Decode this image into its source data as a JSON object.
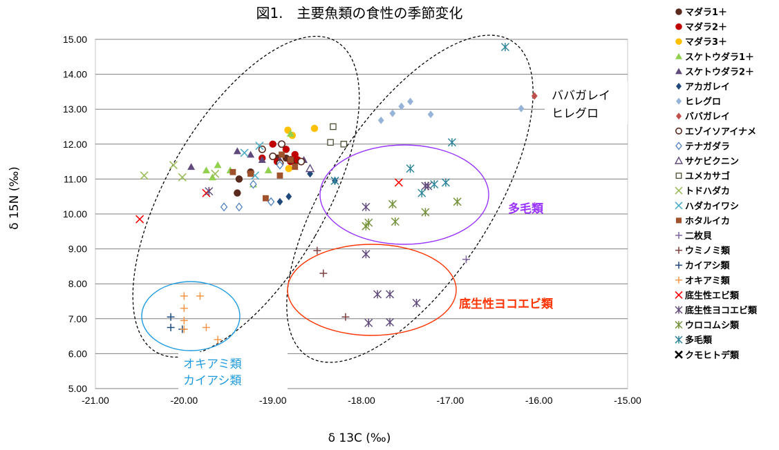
{
  "chart_data": {
    "type": "scatter",
    "title": "図1.　主要魚類の食性の季節変化",
    "xlabel": "δ 13C (‰)",
    "ylabel": "δ 15N (‰)",
    "xlim": [
      -21,
      -15
    ],
    "ylim": [
      5,
      15
    ],
    "x_ticks": [
      "-21.00",
      "-20.00",
      "-19.00",
      "-18.00",
      "-17.00",
      "-16.00",
      "-15.00"
    ],
    "y_ticks": [
      "5.00",
      "6.00",
      "7.00",
      "8.00",
      "9.00",
      "10.00",
      "11.00",
      "12.00",
      "13.00",
      "14.00",
      "15.00"
    ],
    "grid": "horizontal",
    "legend_position": "right",
    "annotations": [
      {
        "text_lines": [
          "ババガレイ",
          "ヒレグロ"
        ],
        "color": "#000000"
      },
      {
        "text_lines": [
          "多毛類"
        ],
        "color": "#9933ff"
      },
      {
        "text_lines": [
          "底生性ヨコエビ類"
        ],
        "color": "#ff3300"
      },
      {
        "text_lines": [
          "オキアミ類",
          "カイアシ類"
        ],
        "color": "#1e9be0"
      }
    ],
    "series": [
      {
        "name": "マダラ1＋",
        "marker": "circle",
        "color": "#5a2a1e",
        "points": [
          [
            -19.4,
            10.6
          ],
          [
            -19.38,
            11.0
          ],
          [
            -19.25,
            11.2
          ],
          [
            -18.95,
            11.6
          ],
          [
            -18.75,
            11.5
          ],
          [
            -18.85,
            11.6
          ]
        ]
      },
      {
        "name": "マダラ2＋",
        "marker": "circle",
        "color": "#c00000",
        "points": [
          [
            -19.12,
            11.6
          ],
          [
            -19.0,
            12.0
          ],
          [
            -18.95,
            11.5
          ],
          [
            -18.8,
            11.5
          ],
          [
            -18.75,
            11.7
          ],
          [
            -18.85,
            11.85
          ],
          [
            -18.72,
            11.55
          ]
        ]
      },
      {
        "name": "マダラ3＋",
        "marker": "circle",
        "color": "#ffc000",
        "points": [
          [
            -18.83,
            12.4
          ],
          [
            -18.53,
            12.45
          ],
          [
            -18.82,
            11.3
          ],
          [
            -18.78,
            12.25
          ]
        ]
      },
      {
        "name": "スケトウダラ1＋",
        "marker": "triangle",
        "color": "#92d050",
        "points": [
          [
            -19.75,
            11.25
          ],
          [
            -19.62,
            11.4
          ],
          [
            -19.68,
            11.05
          ],
          [
            -19.48,
            11.25
          ],
          [
            -19.22,
            10.85
          ],
          [
            -19.05,
            11.25
          ],
          [
            -18.8,
            12.3
          ]
        ]
      },
      {
        "name": "スケトウダラ2＋",
        "marker": "triangle",
        "color": "#604a7b",
        "points": [
          [
            -19.92,
            11.35
          ],
          [
            -19.4,
            11.8
          ],
          [
            -19.25,
            11.7
          ],
          [
            -19.12,
            11.55
          ],
          [
            -18.92,
            11.55
          ],
          [
            -18.65,
            11.55
          ]
        ]
      },
      {
        "name": "アカガレイ",
        "marker": "diamond",
        "color": "#1f497d",
        "points": [
          [
            -18.92,
            10.35
          ],
          [
            -18.82,
            10.5
          ],
          [
            -18.58,
            11.15
          ],
          [
            -18.3,
            10.95
          ]
        ]
      },
      {
        "name": "ヒレグロ",
        "marker": "diamond",
        "color": "#95b3d7",
        "points": [
          [
            -17.78,
            12.68
          ],
          [
            -17.65,
            12.88
          ],
          [
            -17.55,
            13.08
          ],
          [
            -17.45,
            13.22
          ],
          [
            -17.22,
            12.85
          ],
          [
            -16.2,
            13.02
          ]
        ]
      },
      {
        "name": "ババガレイ",
        "marker": "diamond",
        "color": "#c0504d",
        "points": [
          [
            -16.05,
            13.38
          ]
        ]
      },
      {
        "name": "エゾイソアイナメ",
        "marker": "circle-open",
        "color": "#5a2a1e",
        "points": [
          [
            -19.12,
            11.85
          ],
          [
            -19.0,
            11.65
          ],
          [
            -18.9,
            12.0
          ],
          [
            -18.8,
            11.55
          ],
          [
            -18.92,
            11.45
          ],
          [
            -18.68,
            11.5
          ]
        ]
      },
      {
        "name": "テナガダラ",
        "marker": "diamond-open",
        "color": "#4f81bd",
        "points": [
          [
            -19.55,
            10.2
          ],
          [
            -19.38,
            10.2
          ],
          [
            -19.22,
            10.85
          ],
          [
            -19.02,
            10.35
          ],
          [
            -18.92,
            11.4
          ]
        ]
      },
      {
        "name": "サケビクニン",
        "marker": "triangle-open",
        "color": "#604a7b",
        "points": [
          [
            -18.58,
            11.3
          ]
        ]
      },
      {
        "name": "ユメカサゴ",
        "marker": "square-open",
        "color": "#4d4d33",
        "points": [
          [
            -18.35,
            12.05
          ],
          [
            -18.32,
            12.5
          ],
          [
            -18.2,
            12.0
          ]
        ]
      },
      {
        "name": "トドハダカ",
        "marker": "x",
        "color": "#9bbb59",
        "points": [
          [
            -20.45,
            11.1
          ],
          [
            -20.12,
            11.4
          ],
          [
            -20.02,
            11.05
          ],
          [
            -19.65,
            11.15
          ]
        ]
      },
      {
        "name": "ハダカイワシ",
        "marker": "x",
        "color": "#4bacc6",
        "points": [
          [
            -19.15,
            11.95
          ],
          [
            -19.32,
            11.75
          ],
          [
            -19.2,
            11.1
          ]
        ]
      },
      {
        "name": "ホタルイカ",
        "marker": "square",
        "color": "#a0522d",
        "points": [
          [
            -19.45,
            11.2
          ],
          [
            -19.25,
            11.15
          ],
          [
            -19.08,
            10.45
          ],
          [
            -18.92,
            11.1
          ],
          [
            -18.9,
            11.7
          ],
          [
            -18.75,
            11.35
          ],
          [
            -18.8,
            11.55
          ]
        ]
      },
      {
        "name": "二枚貝",
        "marker": "plus",
        "color": "#8064a2",
        "points": [
          [
            -16.82,
            8.7
          ]
        ]
      },
      {
        "name": "ウミノミ類",
        "marker": "plus",
        "color": "#7b3f3f",
        "points": [
          [
            -18.5,
            8.95
          ],
          [
            -18.43,
            8.3
          ],
          [
            -18.18,
            7.05
          ]
        ]
      },
      {
        "name": "カイアシ類",
        "marker": "plus",
        "color": "#1f497d",
        "points": [
          [
            -20.15,
            7.05
          ],
          [
            -20.15,
            6.75
          ],
          [
            -20.02,
            6.7
          ]
        ]
      },
      {
        "name": "オキアミ類",
        "marker": "plus",
        "color": "#f79646",
        "points": [
          [
            -20.0,
            7.65
          ],
          [
            -20.0,
            7.3
          ],
          [
            -20.0,
            6.95
          ],
          [
            -20.0,
            6.7
          ],
          [
            -19.82,
            7.65
          ],
          [
            -19.75,
            6.75
          ],
          [
            -19.62,
            6.4
          ]
        ]
      },
      {
        "name": "底生性エビ類",
        "marker": "x",
        "color": "#ff0000",
        "points": [
          [
            -20.5,
            9.85
          ],
          [
            -19.75,
            10.6
          ],
          [
            -17.58,
            10.9
          ]
        ]
      },
      {
        "name": "底生性ヨコエビ類",
        "marker": "asterisk",
        "color": "#604a7b",
        "points": [
          [
            -19.72,
            10.65
          ],
          [
            -17.95,
            8.85
          ],
          [
            -17.92,
            6.88
          ],
          [
            -17.82,
            7.7
          ],
          [
            -17.68,
            7.7
          ],
          [
            -17.68,
            6.9
          ],
          [
            -17.38,
            7.45
          ],
          [
            -17.95,
            10.2
          ],
          [
            -17.25,
            10.8
          ],
          [
            -17.28,
            10.8
          ]
        ]
      },
      {
        "name": "ウロコムシ類",
        "marker": "asterisk",
        "color": "#76923c",
        "points": [
          [
            -17.95,
            9.65
          ],
          [
            -17.92,
            9.75
          ],
          [
            -17.65,
            10.28
          ],
          [
            -17.62,
            9.78
          ],
          [
            -17.28,
            10.05
          ],
          [
            -16.92,
            10.35
          ]
        ]
      },
      {
        "name": "多毛類",
        "marker": "asterisk",
        "color": "#31859b",
        "points": [
          [
            -18.3,
            10.95
          ],
          [
            -17.45,
            11.3
          ],
          [
            -17.32,
            10.6
          ],
          [
            -17.18,
            10.85
          ],
          [
            -16.98,
            12.05
          ],
          [
            -17.05,
            10.9
          ],
          [
            -16.38,
            14.78
          ]
        ]
      },
      {
        "name": "クモヒトデ類",
        "marker": "x-bold",
        "color": "#000000",
        "points": []
      }
    ]
  }
}
